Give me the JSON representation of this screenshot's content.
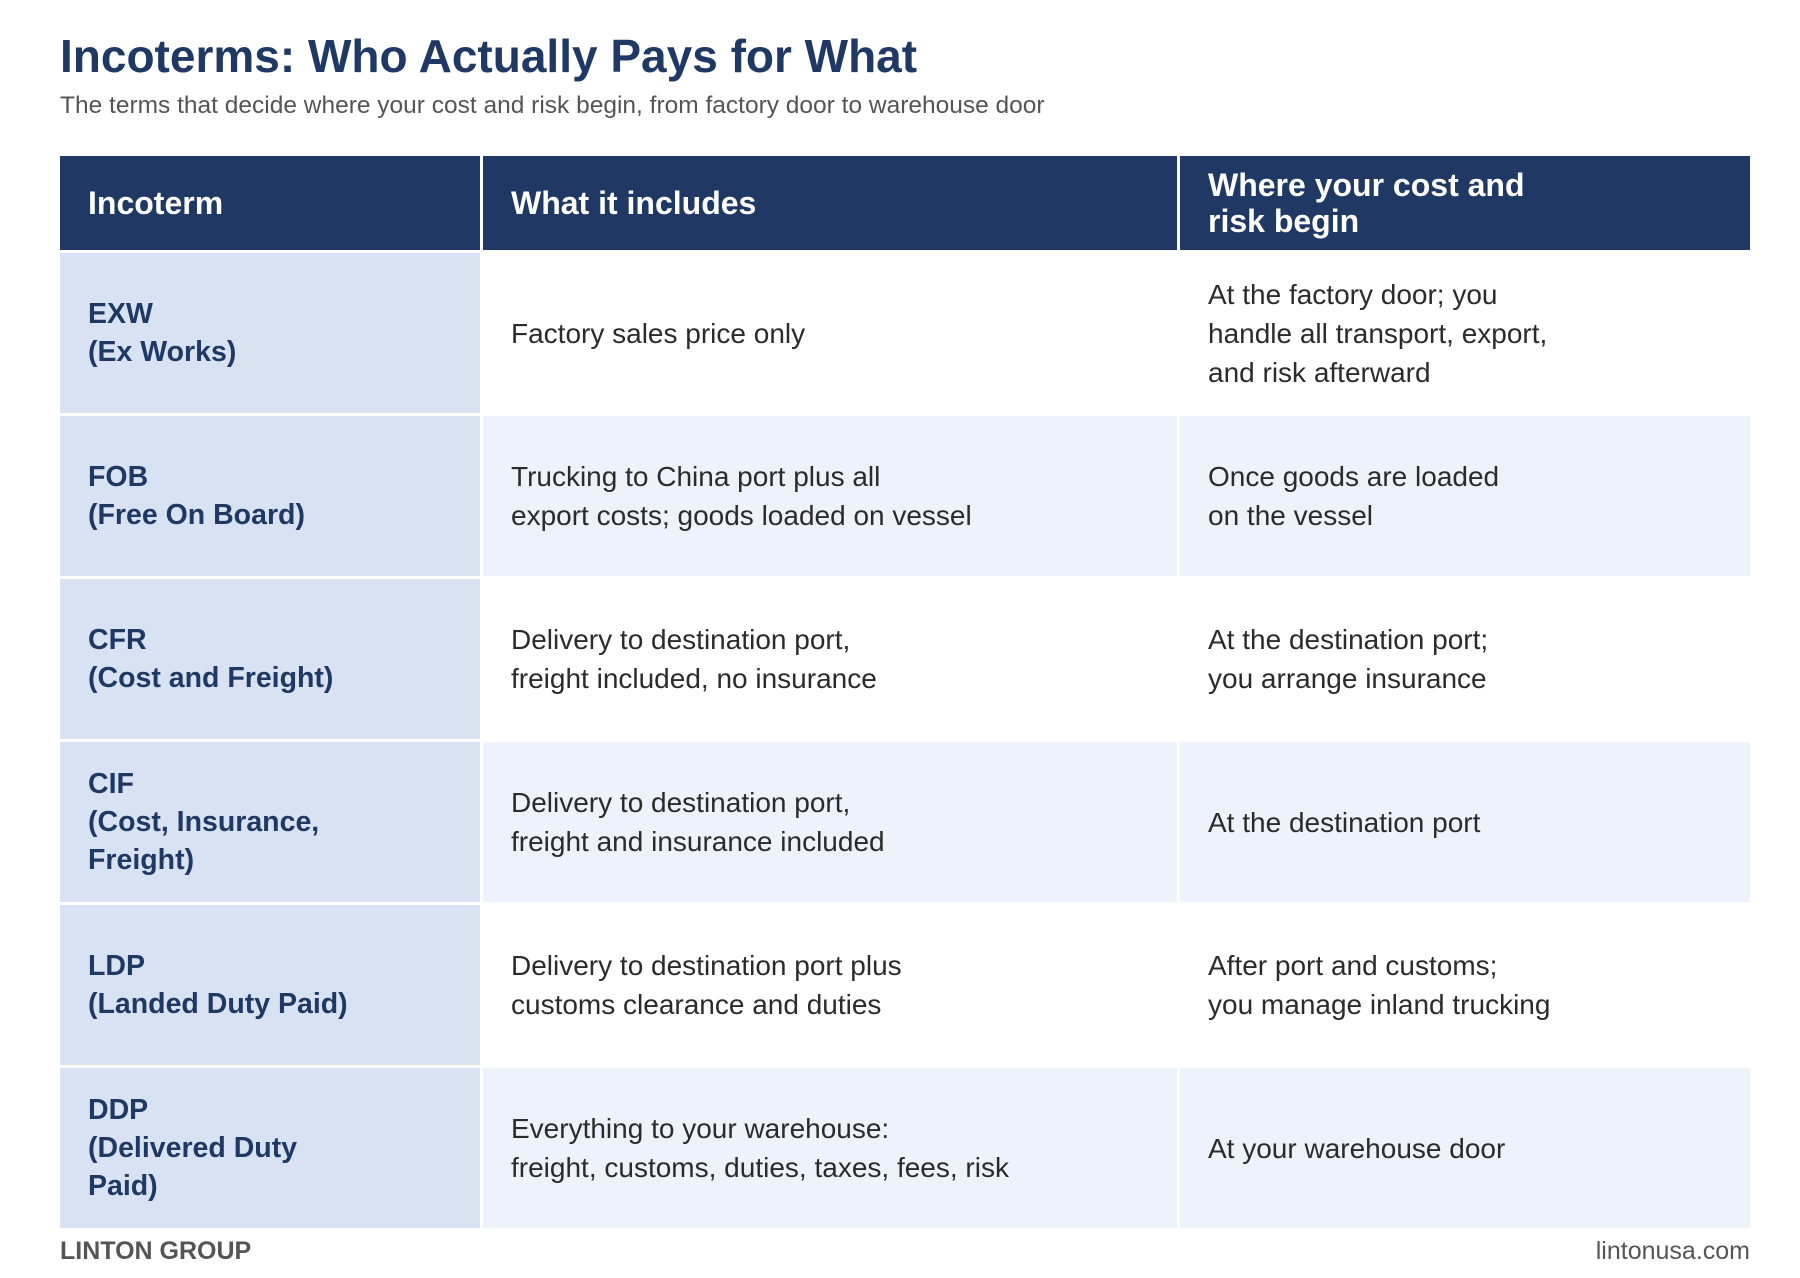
{
  "title": "Incoterms: Who Actually Pays for What",
  "subtitle": "The terms that decide where your cost and risk begin, from factory door to warehouse door",
  "table": {
    "headers": [
      "Incoterm",
      "What it includes",
      "Where your cost and\nrisk begin"
    ],
    "rows": [
      {
        "term": "EXW\n(Ex Works)",
        "includes": "Factory sales price only",
        "risk": "At the factory door; you\nhandle all transport, export,\nand risk afterward"
      },
      {
        "term": "FOB\n(Free On Board)",
        "includes": "Trucking to China port plus all\nexport costs; goods loaded on vessel",
        "risk": "Once goods are loaded\non the vessel"
      },
      {
        "term": "CFR\n(Cost and Freight)",
        "includes": "Delivery to destination port,\nfreight included, no insurance",
        "risk": "At the destination port;\nyou arrange insurance"
      },
      {
        "term": "CIF\n(Cost, Insurance,\nFreight)",
        "includes": "Delivery to destination port,\nfreight and insurance included",
        "risk": "At the destination port"
      },
      {
        "term": "LDP\n(Landed Duty Paid)",
        "includes": "Delivery to destination port plus\ncustoms clearance and duties",
        "risk": "After port and customs;\nyou manage inland trucking"
      },
      {
        "term": "DDP\n(Delivered Duty\nPaid)",
        "includes": "Everything to your warehouse:\nfreight, customs, duties, taxes, fees, risk",
        "risk": "At your warehouse door"
      }
    ]
  },
  "footer": {
    "brand": "LINTON GROUP",
    "url": "lintonusa.com"
  },
  "colors": {
    "header_bg": "#1f3864",
    "term_bg": "#d9e2f3",
    "row_alt_bg": "#eef2fb"
  }
}
